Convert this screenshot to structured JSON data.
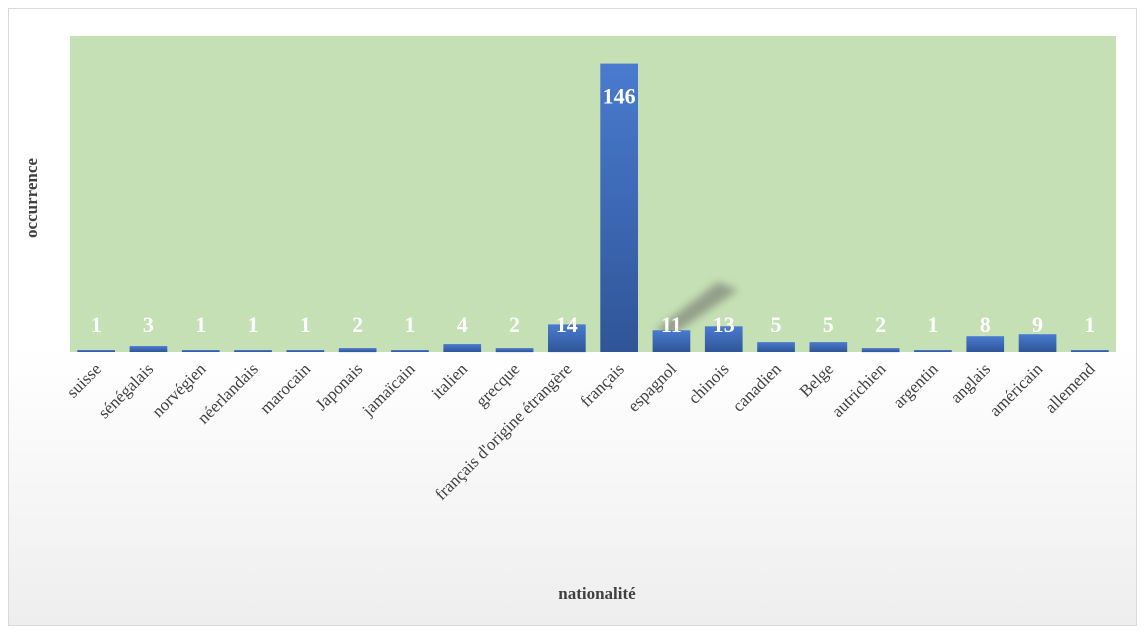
{
  "chart_data": {
    "type": "bar",
    "title": "",
    "xlabel": "nationalité",
    "ylabel": "occurrence",
    "categories": [
      "suisse",
      "sénégalais",
      "norvégien",
      "néerlandais",
      "marocain",
      "Japonais",
      "jamaïcain",
      "italien",
      "grecque",
      "français d'origine étrangère",
      "français",
      "espagnol",
      "chinois",
      "canadien",
      "Belge",
      "autrichien",
      "argentin",
      "anglais",
      "américain",
      "allemend"
    ],
    "values": [
      1,
      3,
      1,
      1,
      1,
      2,
      1,
      4,
      2,
      14,
      146,
      11,
      13,
      5,
      5,
      2,
      1,
      8,
      9,
      1
    ],
    "ylim": [
      0,
      160
    ],
    "grid": false,
    "legend": "none",
    "data_labels": true,
    "colors": {
      "plot_area": "#c5e0b4",
      "bar_top": "#4472c4",
      "bar_bottom": "#2f5597",
      "data_label": "#ffffff",
      "axis_text": "#404040"
    }
  }
}
